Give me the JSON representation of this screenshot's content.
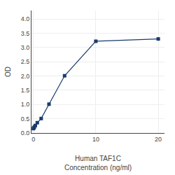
{
  "chart_data": {
    "type": "line",
    "xlabel": "Human TAF1C\nConcentration (ng/ml)",
    "ylabel": "OD",
    "x": [
      0,
      0.078,
      0.156,
      0.313,
      0.625,
      1.25,
      2.5,
      5,
      10,
      20
    ],
    "series": [
      {
        "values": [
          0.154,
          0.181,
          0.212,
          0.262,
          0.361,
          0.508,
          1.012,
          2.009,
          3.22,
          3.302
        ],
        "color": "#1a3a6b",
        "marker": "square",
        "line_style": "solid"
      }
    ],
    "xlim": [
      -0.3,
      21
    ],
    "ylim": [
      0,
      4.3
    ],
    "xticks": [
      0,
      10,
      20
    ],
    "yticks": [
      {
        "value": 0,
        "label": "0.0"
      },
      0.5,
      {
        "value": 1,
        "label": "1.0"
      },
      1.5,
      {
        "value": 2,
        "label": "2.0"
      },
      2.5,
      {
        "value": 3,
        "label": "3.0"
      },
      3.5,
      {
        "value": 4,
        "label": "4.0"
      }
    ],
    "grid": true
  }
}
